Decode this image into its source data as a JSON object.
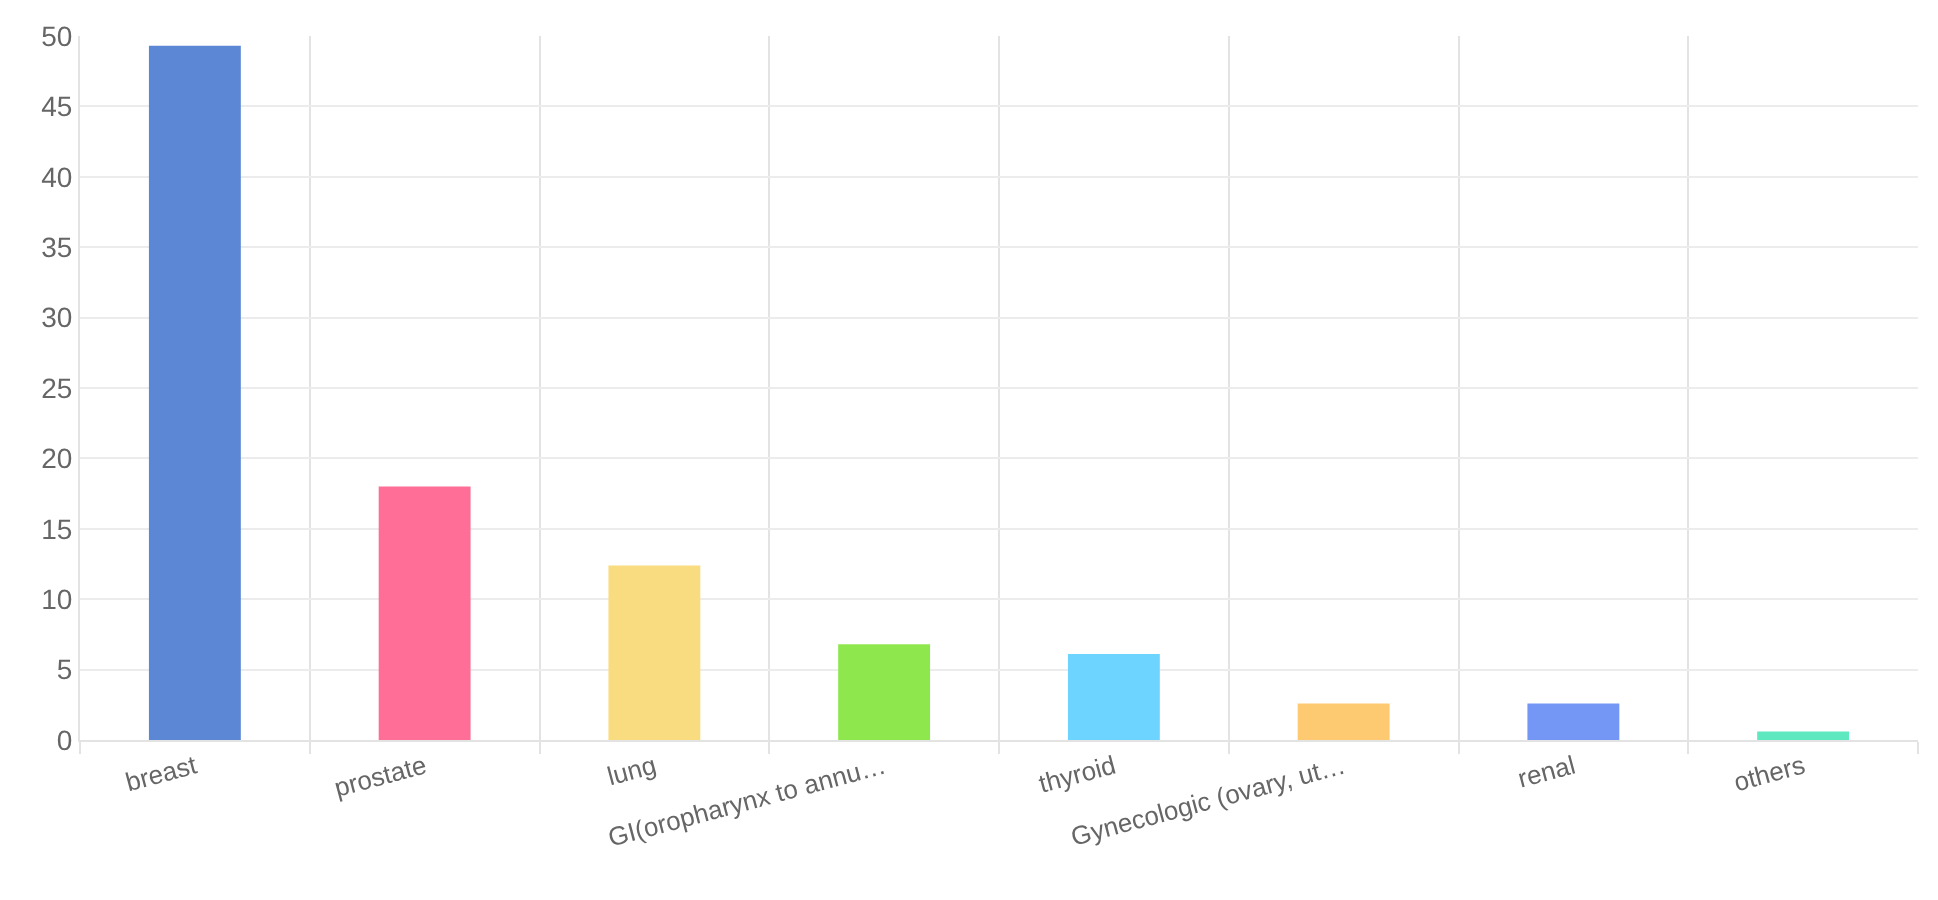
{
  "chart_data": {
    "type": "bar",
    "categories": [
      "breast",
      "prostate",
      "lung",
      "GI(oropharynx to annu…",
      "thyroid",
      "Gynecologic (ovary, ut…",
      "renal",
      "others"
    ],
    "values": [
      49.3,
      18,
      12.4,
      6.8,
      6.1,
      2.6,
      2.6,
      0.6
    ],
    "colors": [
      "#5b87d4",
      "#ff6e96",
      "#fadc80",
      "#8ee84d",
      "#6dd4ff",
      "#fdc971",
      "#7497f5",
      "#5ee8c0"
    ],
    "ylim": [
      0,
      50
    ],
    "yticks": [
      0,
      5,
      10,
      15,
      20,
      25,
      30,
      35,
      40,
      45,
      50
    ],
    "grid": true,
    "legend": false
  }
}
